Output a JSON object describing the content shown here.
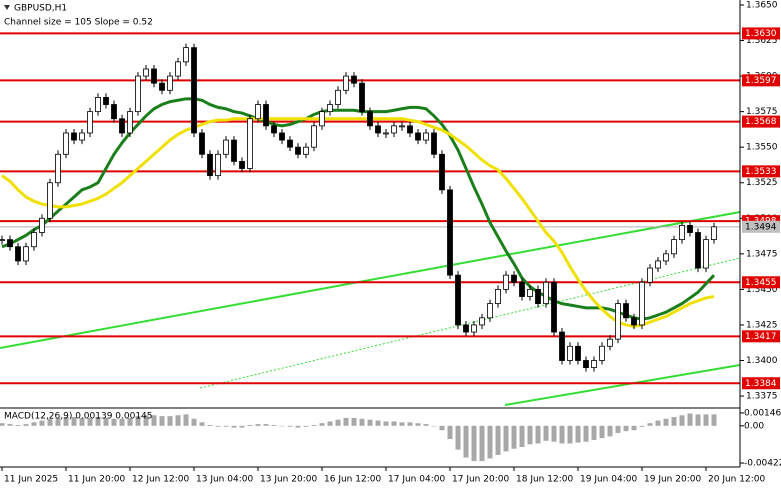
{
  "chart_data": {
    "type": "candlestick",
    "title": "GBPUSD,H1",
    "subtitle": "Channel size = 105 Slope = 0.52",
    "categories": [
      "11 Jun 2025",
      null,
      null,
      null,
      null,
      null,
      null,
      null,
      "11 Jun 20:00",
      null,
      null,
      null,
      null,
      null,
      null,
      null,
      "12 Jun 12:00",
      null,
      null,
      null,
      null,
      null,
      null,
      null,
      "13 Jun 04:00",
      null,
      null,
      null,
      null,
      null,
      null,
      null,
      "13 Jun 20:00",
      null,
      null,
      null,
      null,
      null,
      null,
      null,
      "16 Jun 12:00",
      null,
      null,
      null,
      null,
      null,
      null,
      null,
      "17 Jun 04:00",
      null,
      null,
      null,
      null,
      null,
      null,
      null,
      "17 Jun 20:00",
      null,
      null,
      null,
      null,
      null,
      null,
      null,
      "18 Jun 12:00",
      null,
      null,
      null,
      null,
      null,
      null,
      null,
      "19 Jun 04:00",
      null,
      null,
      null,
      null,
      null,
      null,
      null,
      "19 Jun 20:00",
      null,
      null,
      null,
      null,
      null,
      null,
      null,
      "20 Jun 12:00",
      null
    ],
    "close": [
      1.3485,
      1.348,
      1.347,
      1.348,
      1.349,
      1.35,
      1.3525,
      1.3545,
      1.356,
      1.3555,
      1.356,
      1.3575,
      1.3585,
      1.358,
      1.357,
      1.356,
      1.3575,
      1.36,
      1.3605,
      1.3595,
      1.359,
      1.36,
      1.361,
      1.362,
      1.356,
      1.3545,
      1.353,
      1.3545,
      1.3555,
      1.354,
      1.3535,
      1.357,
      1.358,
      1.3565,
      1.356,
      1.3555,
      1.355,
      1.3545,
      1.355,
      1.3565,
      1.3575,
      1.358,
      1.359,
      1.36,
      1.3595,
      1.3575,
      1.3565,
      1.356,
      1.356,
      1.3565,
      1.3565,
      1.356,
      1.3555,
      1.356,
      1.3545,
      1.352,
      1.346,
      1.3425,
      1.342,
      1.3425,
      1.343,
      1.344,
      1.345,
      1.346,
      1.3455,
      1.3445,
      1.345,
      1.344,
      1.3455,
      1.342,
      1.34,
      1.341,
      1.34,
      1.3395,
      1.34,
      1.341,
      1.3415,
      1.344,
      1.343,
      1.3425,
      1.3455,
      1.3465,
      1.347,
      1.3475,
      1.3485,
      1.3495,
      1.349,
      1.3465,
      1.3485,
      1.3494
    ],
    "moving_averages": [
      {
        "color": "#1a7f1a",
        "values": [
          1.348,
          1.3482,
          1.3485,
          1.3488,
          1.3492,
          1.3495,
          1.35,
          1.3505,
          1.351,
          1.3515,
          1.352,
          1.3522,
          1.3525,
          1.3535,
          1.3545,
          1.3553,
          1.356,
          1.3566,
          1.3572,
          1.3577,
          1.358,
          1.3582,
          1.3583,
          1.3584,
          1.3584,
          1.3583,
          1.358,
          1.3578,
          1.3577,
          1.3575,
          1.3574,
          1.3572,
          1.357,
          1.3568,
          1.3566,
          1.3565,
          1.3566,
          1.3568,
          1.357,
          1.3573,
          1.3575,
          1.3576,
          1.3576,
          1.3576,
          1.3576,
          1.3575,
          1.3575,
          1.3575,
          1.3575,
          1.3576,
          1.3577,
          1.3578,
          1.3578,
          1.3577,
          1.3572,
          1.3566,
          1.3558,
          1.3548,
          1.3535,
          1.3522,
          1.351,
          1.3497,
          1.3487,
          1.3477,
          1.3468,
          1.3458,
          1.3452,
          1.3448,
          1.3445,
          1.3442,
          1.344,
          1.3439,
          1.3438,
          1.3437,
          1.3437,
          1.3437,
          1.3436,
          1.3434,
          1.3432,
          1.343,
          1.3429,
          1.343,
          1.3432,
          1.3434,
          1.3437,
          1.344,
          1.3444,
          1.3448,
          1.3454,
          1.346
        ]
      },
      {
        "color": "#f0e000",
        "values": [
          1.353,
          1.3526,
          1.352,
          1.3515,
          1.3512,
          1.351,
          1.3509,
          1.3508,
          1.3508,
          1.3509,
          1.351,
          1.3512,
          1.3514,
          1.3517,
          1.3521,
          1.3525,
          1.353,
          1.3535,
          1.354,
          1.3545,
          1.355,
          1.3555,
          1.3559,
          1.3562,
          1.3564,
          1.3566,
          1.3568,
          1.3569,
          1.3569,
          1.357,
          1.357,
          1.357,
          1.357,
          1.357,
          1.357,
          1.357,
          1.357,
          1.357,
          1.357,
          1.357,
          1.357,
          1.357,
          1.357,
          1.357,
          1.357,
          1.357,
          1.357,
          1.357,
          1.357,
          1.357,
          1.357,
          1.3569,
          1.3568,
          1.3566,
          1.3564,
          1.3562,
          1.3559,
          1.3555,
          1.3551,
          1.3546,
          1.3541,
          1.3537,
          1.3534,
          1.3528,
          1.3521,
          1.3514,
          1.3506,
          1.3498,
          1.349,
          1.3484,
          1.3476,
          1.3466,
          1.3457,
          1.3449,
          1.3442,
          1.3436,
          1.3431,
          1.3427,
          1.3425,
          1.3424,
          1.3425,
          1.3427,
          1.3429,
          1.3431,
          1.3434,
          1.3437,
          1.344,
          1.3442,
          1.3444,
          1.3445
        ]
      }
    ],
    "ylim": [
      1.33673,
      1.36535
    ],
    "yticks": [
      {
        "value": 1.365,
        "label": "1.3650"
      },
      1.3625,
      {
        "value": 1.36,
        "label": "1.3600"
      },
      1.3575,
      {
        "value": 1.355,
        "label": "1.3550"
      },
      1.3525,
      {
        "value": 1.35,
        "label": "1.3500"
      },
      1.3475,
      {
        "value": 1.345,
        "label": "1.3450"
      },
      1.3425,
      {
        "value": 1.34,
        "label": "1.3400"
      },
      1.3375
    ],
    "levels": [
      {
        "value": 1.363,
        "label": "1.3630"
      },
      1.3597,
      1.3568,
      1.3533,
      1.3498,
      1.3455,
      1.3417,
      1.3384
    ],
    "level_color": "#e00000",
    "current_price": 1.3494,
    "macd": {
      "type": "histogram",
      "title": "MACD(12,26,9) 0.00139 0.00145",
      "color": "#a8a8a8",
      "values": [
        0.0003,
        0.0002,
        0.0001,
        0.0002,
        0.0004,
        0.0006,
        0.0008,
        0.0009,
        0.001,
        0.001,
        0.0009,
        0.0009,
        0.001,
        0.0009,
        0.0008,
        0.0008,
        0.0009,
        0.0011,
        0.0012,
        0.0012,
        0.0011,
        0.0011,
        0.0012,
        0.0013,
        0.0008,
        0.0004,
        0.0001,
        -0.0001,
        -0.0001,
        -0.0002,
        -0.0002,
        0.0001,
        0.0002,
        0.0002,
        0.0001,
        0.0,
        -0.0001,
        -0.0002,
        -0.0001,
        0.0001,
        0.0003,
        0.0005,
        0.0007,
        0.0009,
        0.0009,
        0.0008,
        0.0007,
        0.0006,
        0.0005,
        0.0005,
        0.0004,
        0.0004,
        0.0003,
        0.0002,
        0.0,
        -0.0005,
        -0.0015,
        -0.0027,
        -0.0036,
        -0.004,
        -0.004,
        -0.0037,
        -0.0033,
        -0.0029,
        -0.0026,
        -0.0024,
        -0.0021,
        -0.002,
        -0.0017,
        -0.0018,
        -0.002,
        -0.002,
        -0.0019,
        -0.0018,
        -0.0016,
        -0.0014,
        -0.0012,
        -0.0008,
        -0.0006,
        -0.0005,
        -0.0001,
        0.0003,
        0.0006,
        0.0008,
        0.001,
        0.0012,
        0.0014,
        0.0013,
        0.0013,
        0.0013
      ],
      "ylim": [
        -0.00467,
        0.00191
      ],
      "yticks": [
        0.00146,
        {
          "value": 0,
          "label": "0.00"
        },
        -0.00422
      ]
    }
  }
}
